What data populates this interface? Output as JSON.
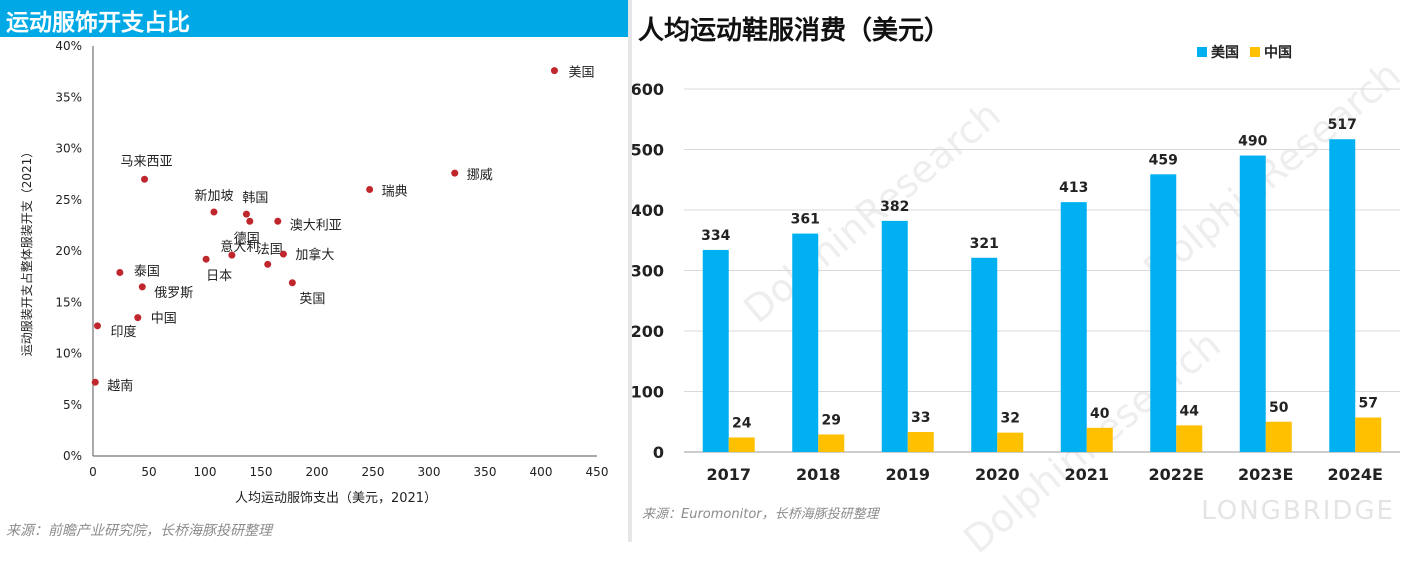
{
  "left": {
    "title": "运动服饰开支占比",
    "source": "来源：前瞻产业研究院，长桥海豚投研整理"
  },
  "right": {
    "title": "人均运动鞋服消费（美元）",
    "source": "来源：Euromonitor，长桥海豚投研整理",
    "watermark": "LONGBRIDGE",
    "watermark_diag": "DolphinResearch"
  },
  "colors": {
    "banner": "#00a9e6",
    "us": "#00b0f0",
    "cn": "#ffc000",
    "dot": "#c0272d"
  },
  "chart_data": [
    {
      "type": "scatter",
      "xlabel": "人均运动服饰支出（美元，2021）",
      "ylabel": "运动服装开支占整体服装开支（2021）",
      "xlim": [
        0,
        450
      ],
      "ylim": [
        0,
        40
      ],
      "xticks": [
        "0",
        "50",
        "100",
        "150",
        "200",
        "250",
        "300",
        "350",
        "400",
        "450"
      ],
      "yticks": [
        "0%",
        "5%",
        "10%",
        "15%",
        "20%",
        "25%",
        "30%",
        "35%",
        "40%"
      ],
      "points": [
        {
          "label": "美国",
          "x": 412,
          "y": 37.6
        },
        {
          "label": "挪威",
          "x": 323,
          "y": 27.6
        },
        {
          "label": "瑞典",
          "x": 247,
          "y": 26.0
        },
        {
          "label": "马来西亚",
          "x": 46,
          "y": 27.0
        },
        {
          "label": "新加坡",
          "x": 108,
          "y": 23.8
        },
        {
          "label": "韩国",
          "x": 137,
          "y": 23.6
        },
        {
          "label": "澳大利亚",
          "x": 165,
          "y": 22.9
        },
        {
          "label": "意大利",
          "x": 124,
          "y": 19.6
        },
        {
          "label": "法国",
          "x": 156,
          "y": 18.7
        },
        {
          "label": "加拿大",
          "x": 170,
          "y": 19.7
        },
        {
          "label": "日本",
          "x": 101,
          "y": 19.2
        },
        {
          "label": "德国",
          "x": 140,
          "y": 22.9
        },
        {
          "label": "英国",
          "x": 178,
          "y": 16.9
        },
        {
          "label": "泰国",
          "x": 24,
          "y": 17.9
        },
        {
          "label": "俄罗斯",
          "x": 44,
          "y": 16.5
        },
        {
          "label": "中国",
          "x": 40,
          "y": 13.5
        },
        {
          "label": "印度",
          "x": 4,
          "y": 12.7
        },
        {
          "label": "越南",
          "x": 2,
          "y": 7.2
        }
      ]
    },
    {
      "type": "bar",
      "categories": [
        "2017",
        "2018",
        "2019",
        "2020",
        "2021",
        "2022E",
        "2023E",
        "2024E"
      ],
      "series": [
        {
          "name": "美国",
          "values": [
            334,
            361,
            382,
            321,
            413,
            459,
            490,
            517
          ]
        },
        {
          "name": "中国",
          "values": [
            24,
            29,
            33,
            32,
            40,
            44,
            50,
            57
          ]
        }
      ],
      "ylim": [
        0,
        600
      ],
      "yticks": [
        "0",
        "100",
        "200",
        "300",
        "400",
        "500",
        "600"
      ],
      "legend": "top-right",
      "grid": true
    }
  ]
}
